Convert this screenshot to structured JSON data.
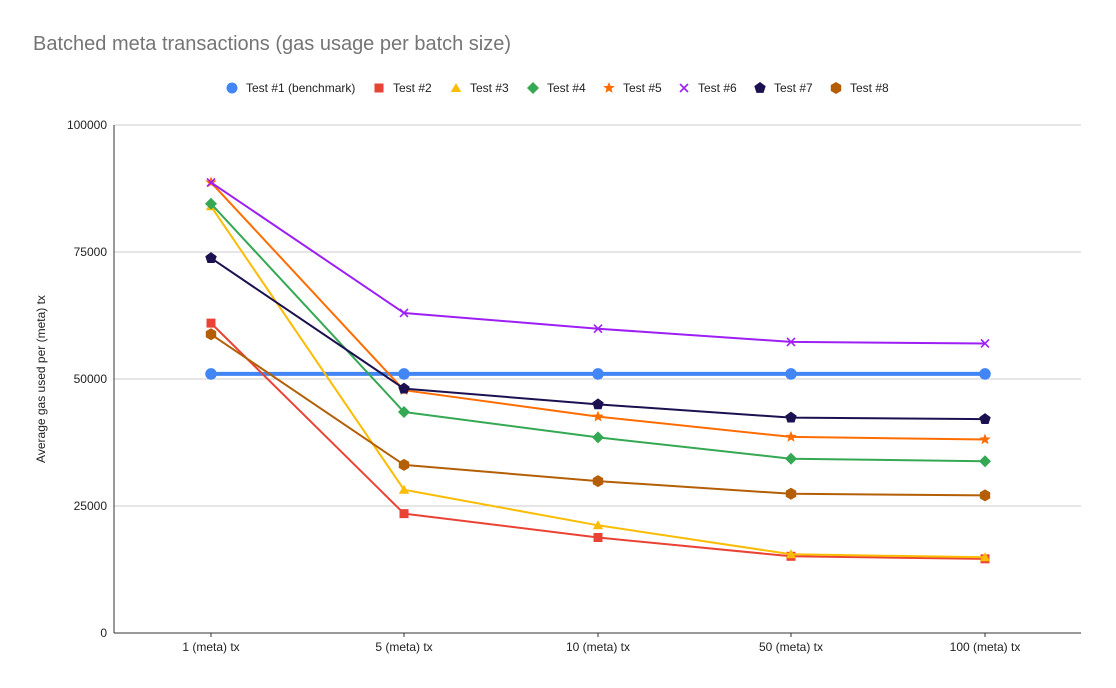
{
  "chart_data": {
    "type": "line",
    "title": "Batched meta transactions (gas usage per batch size)",
    "xlabel": "",
    "ylabel": "Average gas used per (meta) tx",
    "categories": [
      "1 (meta) tx",
      "5 (meta) tx",
      "10 (meta) tx",
      "50 (meta) tx",
      "100 (meta) tx"
    ],
    "ylim": [
      0,
      100000
    ],
    "yticks": [
      "0",
      "25000",
      "50000",
      "75000",
      "100000"
    ],
    "grid": true,
    "legend_position": "top",
    "series": [
      {
        "name": "Test #1 (benchmark)",
        "color": "#4285f4",
        "marker": "circle",
        "values": [
          51000,
          51000,
          51000,
          51000,
          51000
        ]
      },
      {
        "name": "Test #2",
        "color": "#ea4335",
        "marker": "square",
        "values": [
          61000,
          23500,
          18800,
          15100,
          14600
        ]
      },
      {
        "name": "Test #3",
        "color": "#fbbc04",
        "marker": "triangle",
        "values": [
          84000,
          28200,
          21200,
          15500,
          14900
        ]
      },
      {
        "name": "Test #4",
        "color": "#34a853",
        "marker": "diamond",
        "values": [
          84500,
          43500,
          38500,
          34300,
          33800
        ]
      },
      {
        "name": "Test #5",
        "color": "#ff6d01",
        "marker": "star",
        "values": [
          88700,
          47800,
          42600,
          38600,
          38100
        ]
      },
      {
        "name": "Test #6",
        "color": "#9e1ff4",
        "marker": "x",
        "values": [
          88700,
          63000,
          59900,
          57300,
          57000
        ]
      },
      {
        "name": "Test #7",
        "color": "#1c1150",
        "marker": "pentagon",
        "values": [
          73800,
          48100,
          45000,
          42400,
          42100
        ]
      },
      {
        "name": "Test #8",
        "color": "#b45f06",
        "marker": "hexagon",
        "values": [
          58800,
          33100,
          29900,
          27400,
          27100
        ]
      }
    ]
  }
}
